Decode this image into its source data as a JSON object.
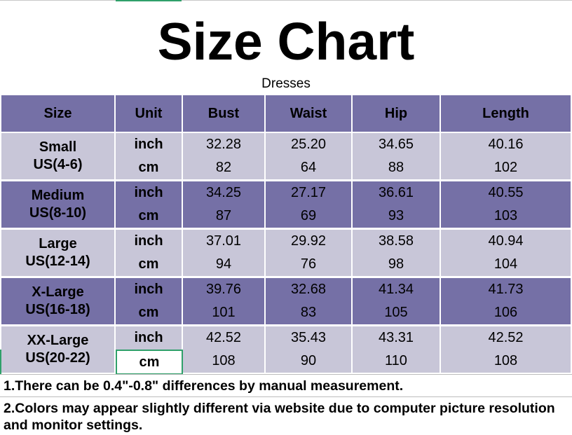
{
  "title": "Size Chart",
  "subtitle": "Dresses",
  "headers": [
    "Size",
    "Unit",
    "Bust",
    "Waist",
    "Hip",
    "Length"
  ],
  "rows": [
    {
      "size": "Small",
      "us": "US(4-6)",
      "inch": [
        "32.28",
        "25.20",
        "34.65",
        "40.16"
      ],
      "cm": [
        "82",
        "64",
        "88",
        "102"
      ]
    },
    {
      "size": "Medium",
      "us": "US(8-10)",
      "inch": [
        "34.25",
        "27.17",
        "36.61",
        "40.55"
      ],
      "cm": [
        "87",
        "69",
        "93",
        "103"
      ]
    },
    {
      "size": "Large",
      "us": "US(12-14)",
      "inch": [
        "37.01",
        "29.92",
        "38.58",
        "40.94"
      ],
      "cm": [
        "94",
        "76",
        "98",
        "104"
      ]
    },
    {
      "size": "X-Large",
      "us": "US(16-18)",
      "inch": [
        "39.76",
        "32.68",
        "41.34",
        "41.73"
      ],
      "cm": [
        "101",
        "83",
        "105",
        "106"
      ]
    },
    {
      "size": "XX-Large",
      "us": "US(20-22)",
      "inch": [
        "42.52",
        "35.43",
        "43.31",
        "42.52"
      ],
      "cm": [
        "108",
        "90",
        "110",
        "108"
      ]
    }
  ],
  "units": {
    "inch": "inch",
    "cm": "cm"
  },
  "notes": [
    "1.There can be 0.4\"-0.8\" differences by manual measurement.",
    "2.Colors may appear slightly different via website due to computer picture resolution",
    "and monitor settings."
  ],
  "colors": {
    "header_bg": "#7570a6",
    "row_dark": "#7570a6",
    "row_light": "#c8c6d8",
    "selection": "#2fa06a"
  }
}
